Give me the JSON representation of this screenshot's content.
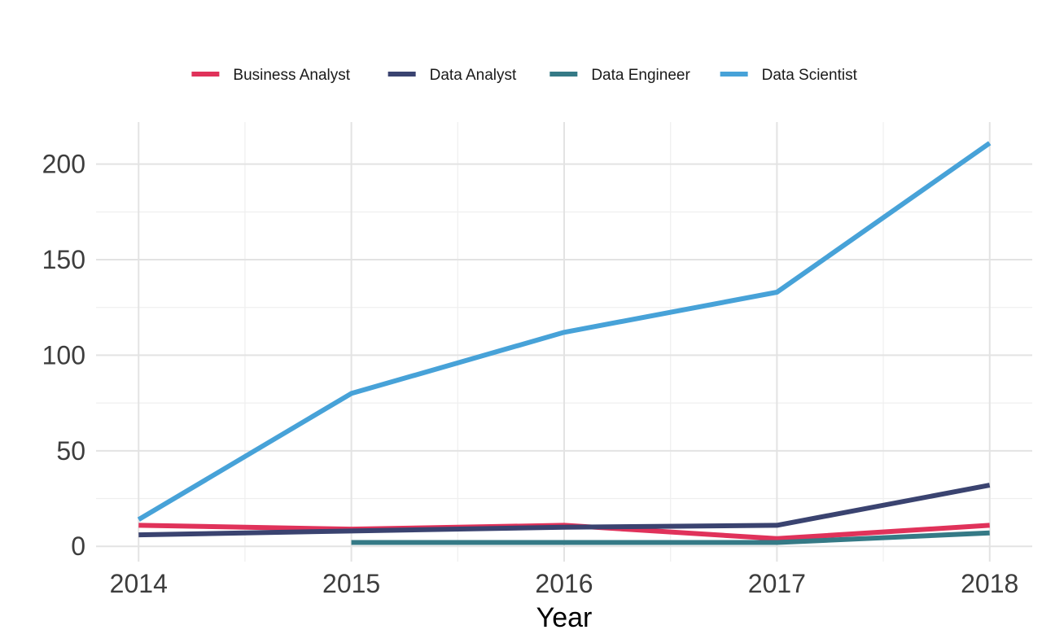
{
  "chart_data": {
    "type": "line",
    "title": "",
    "xlabel": "Year",
    "ylabel": "",
    "x": [
      2014,
      2015,
      2016,
      2017,
      2018
    ],
    "xlim": [
      2013.8,
      2018.2
    ],
    "ylim": [
      -8,
      222
    ],
    "yticks": [
      0,
      50,
      100,
      150,
      200
    ],
    "xticks": [
      2014,
      2015,
      2016,
      2017,
      2018
    ],
    "grid": true,
    "legend_position": "top",
    "series": [
      {
        "name": "Business Analyst",
        "color": "#E0325A",
        "points": [
          [
            2014,
            11
          ],
          [
            2015,
            9
          ],
          [
            2016,
            11
          ],
          [
            2017,
            4
          ],
          [
            2018,
            11
          ]
        ]
      },
      {
        "name": "Data Analyst",
        "color": "#3A4370",
        "points": [
          [
            2014,
            6
          ],
          [
            2015,
            8
          ],
          [
            2016,
            10
          ],
          [
            2017,
            11
          ],
          [
            2018,
            32
          ]
        ]
      },
      {
        "name": "Data Engineer",
        "color": "#357A86",
        "points": [
          [
            2015,
            2
          ],
          [
            2016,
            2
          ],
          [
            2017,
            2
          ],
          [
            2018,
            7
          ]
        ]
      },
      {
        "name": "Data Scientist",
        "color": "#47A2D8",
        "points": [
          [
            2014,
            14
          ],
          [
            2015,
            80
          ],
          [
            2016,
            112
          ],
          [
            2017,
            133
          ],
          [
            2018,
            211
          ]
        ]
      }
    ]
  }
}
